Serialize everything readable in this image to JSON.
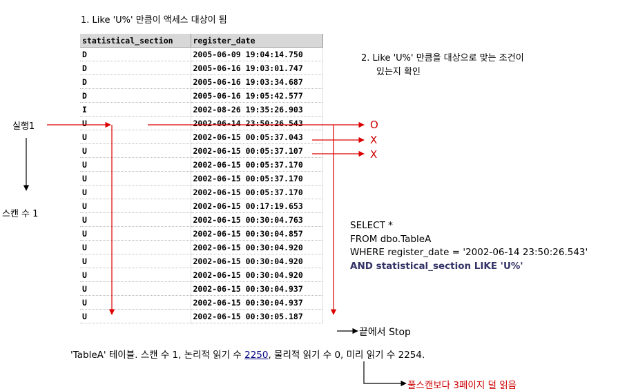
{
  "note1": "1. Like 'U%' 만큼이 액세스 대상이 됨",
  "note2_line1": "2. Like 'U%' 만큼을 대상으로 맞는 조건이",
  "note2_line2": "있는지 확인",
  "exec_label": "실행1",
  "scan_label": "스캔 수 1",
  "result_marks": [
    "O",
    "X",
    "X"
  ],
  "stop_label": "끝에서 Stop",
  "table": {
    "columns": [
      "statistical_section",
      "register_date"
    ],
    "rows": [
      [
        "D",
        "2005-06-09 19:04:14.750"
      ],
      [
        "D",
        "2005-06-16 19:03:01.747"
      ],
      [
        "D",
        "2005-06-16 19:03:34.687"
      ],
      [
        "D",
        "2005-06-16 19:05:42.577"
      ],
      [
        "I",
        "2002-08-26 19:35:26.903"
      ],
      [
        "U",
        "2002-06-14 23:50:26.543"
      ],
      [
        "U",
        "2002-06-15 00:05:37.043"
      ],
      [
        "U",
        "2002-06-15 00:05:37.107"
      ],
      [
        "U",
        "2002-06-15 00:05:37.170"
      ],
      [
        "U",
        "2002-06-15 00:05:37.170"
      ],
      [
        "U",
        "2002-06-15 00:05:37.170"
      ],
      [
        "U",
        "2002-06-15 00:17:19.653"
      ],
      [
        "U",
        "2002-06-15 00:30:04.763"
      ],
      [
        "U",
        "2002-06-15 00:30:04.857"
      ],
      [
        "U",
        "2002-06-15 00:30:04.920"
      ],
      [
        "U",
        "2002-06-15 00:30:04.920"
      ],
      [
        "U",
        "2002-06-15 00:30:04.920"
      ],
      [
        "U",
        "2002-06-15 00:30:04.937"
      ],
      [
        "U",
        "2002-06-15 00:30:04.937"
      ],
      [
        "U",
        "2002-06-15 00:30:05.187"
      ]
    ]
  },
  "sql": {
    "line1": "SELECT *",
    "line2": "FROM dbo.TableA",
    "line3": "WHERE register_date = '2002-06-14 23:50:26.543'",
    "line4": "AND statistical_section LIKE 'U%'"
  },
  "stats": {
    "prefix": "'TableA' 테이블. 스캔 수 1, 논리적 읽기 수 ",
    "logical_reads": "2250",
    "suffix": ", 물리적 읽기 수 0, 미리 읽기 수 2254."
  },
  "footnote": "풀스캔보다 3페이지 덜 읽음",
  "colors": {
    "arrow": "#dd0000",
    "sql_highlight": "#333366"
  }
}
